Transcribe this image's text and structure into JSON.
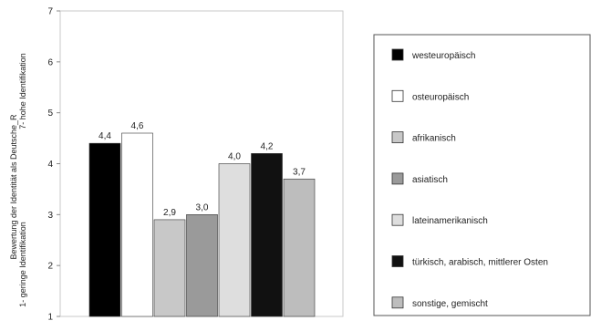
{
  "chart_data": {
    "type": "bar",
    "ylabel_line1": "Bewertung der Identität als Deutsche_R",
    "ylabel_line2": "7- hohe Identifikation",
    "ylabel_line3": "1- geringe Identifikation",
    "ylim": [
      1,
      7
    ],
    "yticks": [
      "1",
      "2",
      "3",
      "4",
      "5",
      "6",
      "7"
    ],
    "grid": false,
    "legend_position": "right",
    "series": [
      {
        "name": "westeuropäisch",
        "value": 4.4,
        "label": "4,4",
        "color": "#000000"
      },
      {
        "name": "osteuropäisch",
        "value": 4.6,
        "label": "4,6",
        "color": "#ffffff"
      },
      {
        "name": "afrikanisch",
        "value": 2.9,
        "label": "2,9",
        "color": "#c8c8c8"
      },
      {
        "name": "asiatisch",
        "value": 3.0,
        "label": "3,0",
        "color": "#9a9a9a"
      },
      {
        "name": "lateinamerikanisch",
        "value": 4.0,
        "label": "4,0",
        "color": "#dedede"
      },
      {
        "name": "türkisch, arabisch, mittlerer Osten",
        "value": 4.2,
        "label": "4,2",
        "color": "#111111"
      },
      {
        "name": "sonstige, gemischt",
        "value": 3.7,
        "label": "3,7",
        "color": "#bdbdbd"
      }
    ]
  }
}
